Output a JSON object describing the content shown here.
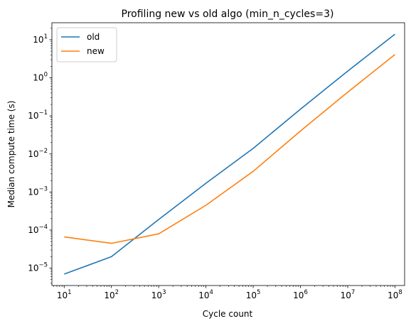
{
  "chart_data": {
    "type": "line",
    "title": "Profiling new vs old algo (min_n_cycles=3)",
    "xlabel": "Cycle count",
    "ylabel": "Median compute time (s)",
    "xscale": "log",
    "yscale": "log",
    "xlim": [
      5.5,
      160000000
    ],
    "ylim": [
      3.5e-06,
      28
    ],
    "grid": false,
    "legend_position": "top-left",
    "x_ticks": [
      {
        "value": 10,
        "mant": "10",
        "exp": "1"
      },
      {
        "value": 100,
        "mant": "10",
        "exp": "2"
      },
      {
        "value": 1000,
        "mant": "10",
        "exp": "3"
      },
      {
        "value": 10000,
        "mant": "10",
        "exp": "4"
      },
      {
        "value": 100000,
        "mant": "10",
        "exp": "5"
      },
      {
        "value": 1000000,
        "mant": "10",
        "exp": "6"
      },
      {
        "value": 10000000,
        "mant": "10",
        "exp": "7"
      },
      {
        "value": 100000000,
        "mant": "10",
        "exp": "8"
      }
    ],
    "y_ticks": [
      {
        "value": 1e-05,
        "mant": "10",
        "exp": "−5"
      },
      {
        "value": 0.0001,
        "mant": "10",
        "exp": "−4"
      },
      {
        "value": 0.001,
        "mant": "10",
        "exp": "−3"
      },
      {
        "value": 0.01,
        "mant": "10",
        "exp": "−2"
      },
      {
        "value": 0.1,
        "mant": "10",
        "exp": "−1"
      },
      {
        "value": 1,
        "mant": "10",
        "exp": "0"
      },
      {
        "value": 10,
        "mant": "10",
        "exp": "1"
      }
    ],
    "series": [
      {
        "name": "old",
        "color": "#1f77b4",
        "x": [
          10,
          100,
          1000,
          10000,
          100000,
          1000000,
          10000000,
          100000000
        ],
        "y": [
          7e-06,
          2e-05,
          0.00019,
          0.0017,
          0.014,
          0.15,
          1.5,
          14
        ]
      },
      {
        "name": "new",
        "color": "#ff7f0e",
        "x": [
          10,
          100,
          1000,
          10000,
          100000,
          1000000,
          10000000,
          100000000
        ],
        "y": [
          6.6e-05,
          4.5e-05,
          8e-05,
          0.00045,
          0.0035,
          0.04,
          0.42,
          4.1
        ]
      }
    ]
  }
}
